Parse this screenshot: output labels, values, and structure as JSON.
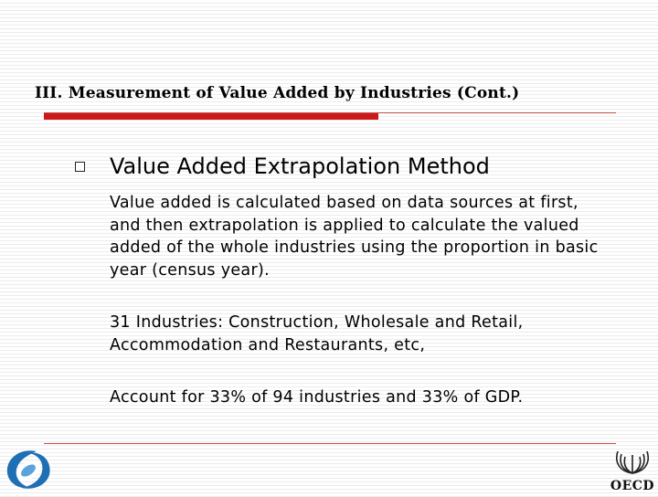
{
  "slide": {
    "title": "III. Measurement of Value Added by Industries (Cont.)",
    "heading": "Value Added Extrapolation Method",
    "paragraphs": [
      "Value added is calculated based on data sources at first, and then extrapolation is applied to calculate the valued added of the whole industries using the proportion in basic year (census year).",
      "31 Industries: Construction, Wholesale and Retail, Accommodation and Restaurants, etc,",
      "Account for 33% of 94 industries and 33% of GDP."
    ]
  },
  "logos": {
    "left": "statistics-agency-logo",
    "right_label": "OECD"
  },
  "colors": {
    "accent_red": "#cc1a1a",
    "rule_red": "#c0504d",
    "logo_blue": "#1f6fb5"
  }
}
